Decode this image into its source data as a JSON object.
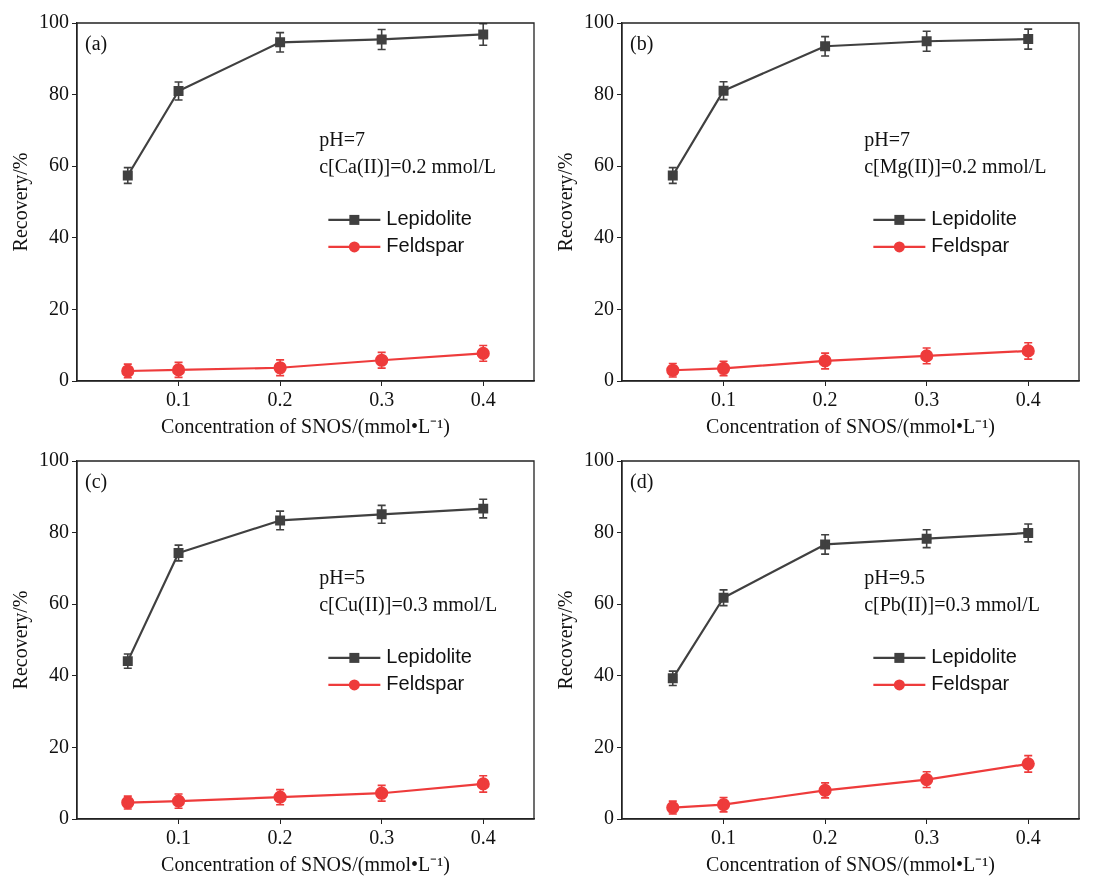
{
  "chart_data": [
    {
      "type": "line",
      "annotations": [
        "(a)",
        "pH=7",
        "c[Ca(II)]=0.2 mmol/L"
      ],
      "xlabel": "Concentration of SNOS/(mmol•L⁻¹)",
      "ylabel": "Recovery/%",
      "x": [
        0.05,
        0.1,
        0.2,
        0.3,
        0.4
      ],
      "xlim": [
        0,
        0.45
      ],
      "xticks": [
        0.1,
        0.2,
        0.3,
        0.4
      ],
      "ylim": [
        0,
        100
      ],
      "yticks": [
        0,
        20,
        40,
        60,
        80,
        100
      ],
      "grid": false,
      "legend": "center right",
      "line_style": "solid",
      "series": [
        {
          "name": "Lepidolite",
          "color": "#404040",
          "marker": "square",
          "values": [
            57.4,
            81.0,
            94.6,
            95.4,
            96.8
          ],
          "errors": [
            2.2,
            2.5,
            2.7,
            2.8,
            3.0
          ]
        },
        {
          "name": "Feldspar",
          "color": "#ee3b3b",
          "marker": "circle",
          "values": [
            2.8,
            3.1,
            3.7,
            5.8,
            7.7
          ],
          "errors": [
            1.9,
            2.1,
            2.2,
            2.2,
            2.2
          ]
        }
      ]
    },
    {
      "type": "line",
      "annotations": [
        "(b)",
        "pH=7",
        "c[Mg(II)]=0.2 mmol/L"
      ],
      "xlabel": "Concentration of SNOS/(mmol•L⁻¹)",
      "ylabel": "Recovery/%",
      "x": [
        0.05,
        0.1,
        0.2,
        0.3,
        0.4
      ],
      "xlim": [
        0,
        0.45
      ],
      "xticks": [
        0.1,
        0.2,
        0.3,
        0.4
      ],
      "ylim": [
        0,
        100
      ],
      "yticks": [
        0,
        20,
        40,
        60,
        80,
        100
      ],
      "grid": false,
      "legend": "center right",
      "line_style": "solid",
      "series": [
        {
          "name": "Lepidolite",
          "color": "#404040",
          "marker": "square",
          "values": [
            57.4,
            81.1,
            93.5,
            94.9,
            95.5
          ],
          "errors": [
            2.2,
            2.5,
            2.7,
            2.8,
            2.8
          ]
        },
        {
          "name": "Feldspar",
          "color": "#ee3b3b",
          "marker": "circle",
          "values": [
            3.0,
            3.5,
            5.6,
            7.0,
            8.4
          ],
          "errors": [
            1.9,
            2.0,
            2.2,
            2.2,
            2.3
          ]
        }
      ]
    },
    {
      "type": "line",
      "annotations": [
        "(c)",
        "pH=5",
        "c[Cu(II)]=0.3 mmol/L"
      ],
      "xlabel": "Concentration of SNOS/(mmol•L⁻¹)",
      "ylabel": "Recovery/%",
      "x": [
        0.05,
        0.1,
        0.2,
        0.3,
        0.4
      ],
      "xlim": [
        0,
        0.45
      ],
      "xticks": [
        0.1,
        0.2,
        0.3,
        0.4
      ],
      "ylim": [
        0,
        100
      ],
      "yticks": [
        0,
        20,
        40,
        60,
        80,
        100
      ],
      "grid": false,
      "legend": "center right",
      "line_style": "solid",
      "series": [
        {
          "name": "Lepidolite",
          "color": "#404040",
          "marker": "square",
          "values": [
            44.1,
            74.3,
            83.4,
            85.1,
            86.7
          ],
          "errors": [
            2.0,
            2.2,
            2.6,
            2.5,
            2.6
          ]
        },
        {
          "name": "Feldspar",
          "color": "#ee3b3b",
          "marker": "circle",
          "values": [
            4.6,
            5.0,
            6.1,
            7.2,
            9.8
          ],
          "errors": [
            1.8,
            2.0,
            2.1,
            2.2,
            2.3
          ]
        }
      ]
    },
    {
      "type": "line",
      "annotations": [
        "(d)",
        "pH=9.5",
        "c[Pb(II)]=0.3 mmol/L"
      ],
      "xlabel": "Concentration of SNOS/(mmol•L⁻¹)",
      "ylabel": "Recovery/%",
      "x": [
        0.05,
        0.1,
        0.2,
        0.3,
        0.4
      ],
      "xlim": [
        0,
        0.45
      ],
      "xticks": [
        0.1,
        0.2,
        0.3,
        0.4
      ],
      "ylim": [
        0,
        100
      ],
      "yticks": [
        0,
        20,
        40,
        60,
        80,
        100
      ],
      "grid": false,
      "legend": "center right",
      "line_style": "solid",
      "series": [
        {
          "name": "Lepidolite",
          "color": "#404040",
          "marker": "square",
          "values": [
            39.3,
            61.8,
            76.7,
            78.3,
            79.9
          ],
          "errors": [
            2.0,
            2.2,
            2.7,
            2.5,
            2.5
          ]
        },
        {
          "name": "Feldspar",
          "color": "#ee3b3b",
          "marker": "circle",
          "values": [
            3.2,
            4.0,
            8.0,
            11.0,
            15.4
          ],
          "errors": [
            1.8,
            2.0,
            2.1,
            2.2,
            2.3
          ]
        }
      ]
    }
  ]
}
